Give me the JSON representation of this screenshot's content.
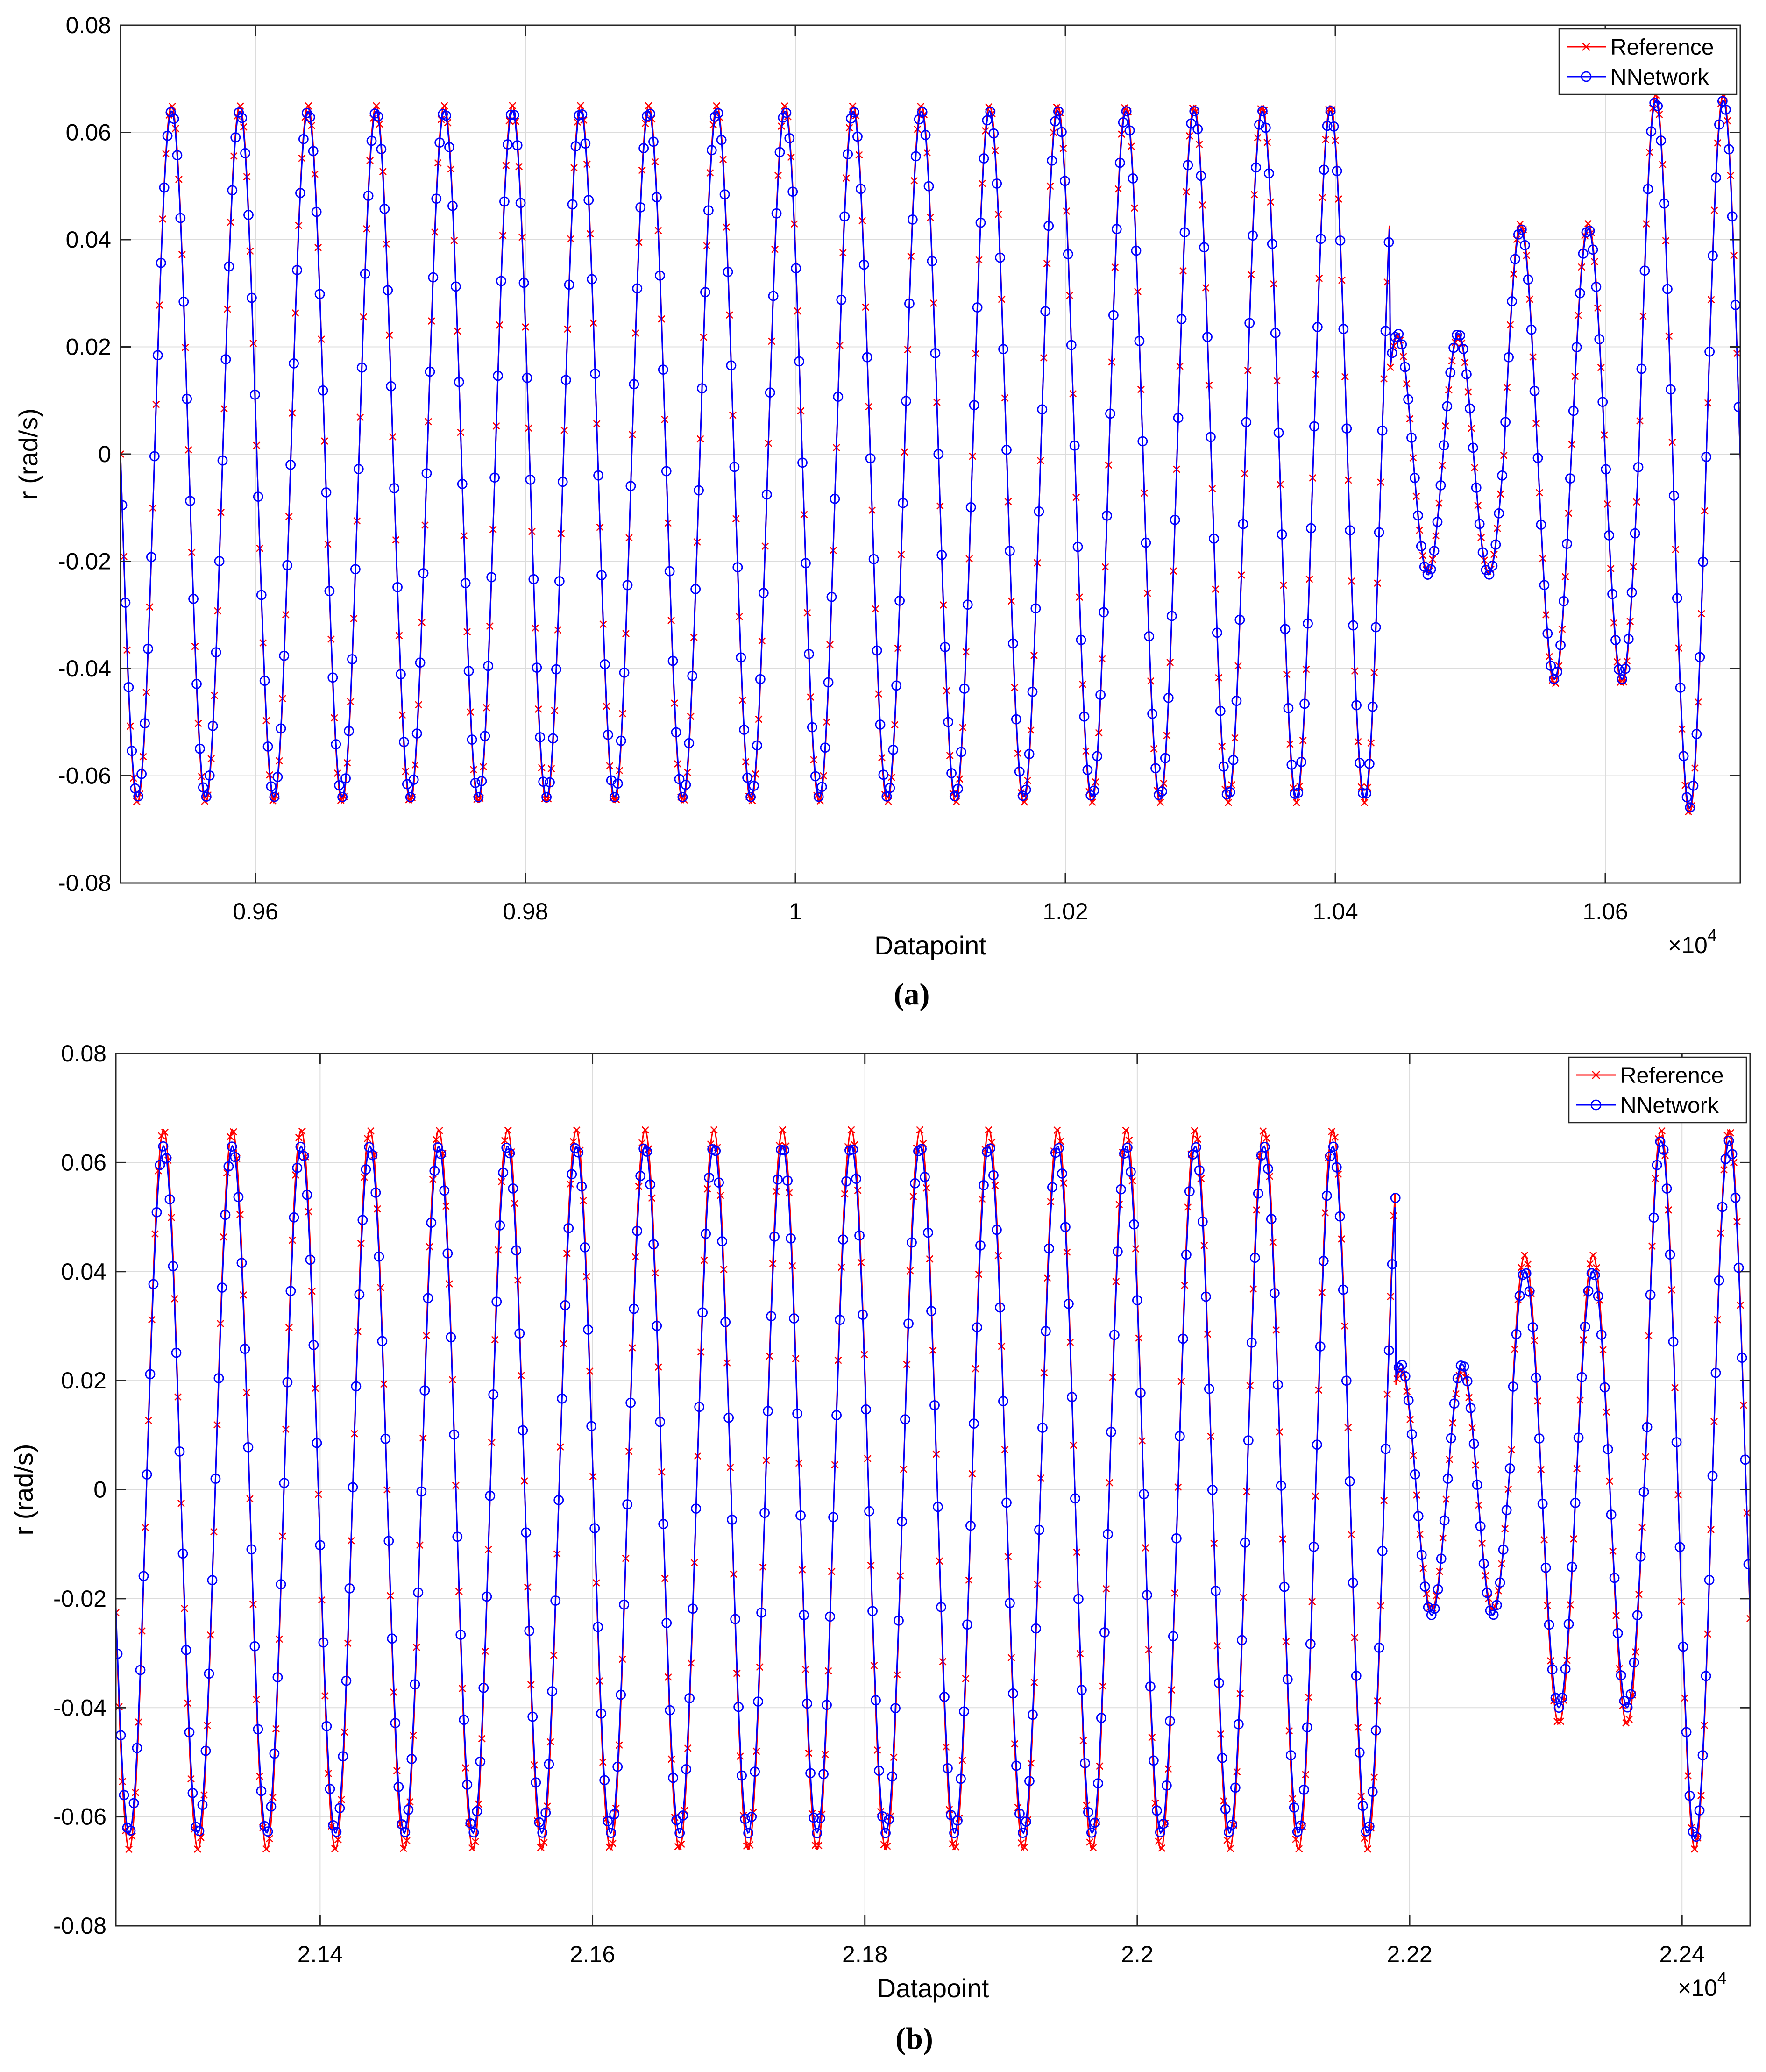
{
  "colors": {
    "reference": "#ff0000",
    "nnetwork": "#0000ff",
    "grid": "#dcdcdc",
    "axis": "#262626"
  },
  "chart_data": [
    {
      "type": "line",
      "panel": "a",
      "caption": "(a)",
      "xlabel": "Datapoint",
      "ylabel": "r (rad/s)",
      "x_exponent_label": "×10",
      "x_exponent": "4",
      "xlim": [
        0.95,
        1.07
      ],
      "ylim": [
        -0.08,
        0.08
      ],
      "xticks": [
        0.96,
        0.98,
        1.0,
        1.02,
        1.04,
        1.06
      ],
      "xtick_labels": [
        "0.96",
        "0.98",
        "1",
        "1.02",
        "1.04",
        "1.06"
      ],
      "yticks": [
        -0.08,
        -0.06,
        -0.04,
        -0.02,
        0,
        0.02,
        0.04,
        0.06,
        0.08
      ],
      "ytick_labels": [
        "-0.08",
        "-0.06",
        "-0.04",
        "-0.02",
        "0",
        "0.02",
        "0.04",
        "0.06",
        "0.08"
      ],
      "grid": true,
      "legend": {
        "position": "top-right",
        "entries": [
          "Reference",
          "NNetwork"
        ]
      },
      "series": [
        {
          "name": "Reference",
          "marker": "x",
          "x_start": 0.95,
          "start_phase_deg": 180,
          "segments": [
            {
              "until": 1.044,
              "period": 0.00505,
              "amplitude": 0.065
            },
            {
              "until": 1.0525,
              "period": 0.0045,
              "amplitude": 0.022
            },
            {
              "until": 1.0625,
              "period": 0.005,
              "amplitude": 0.043
            },
            {
              "until": 1.07,
              "period": 0.005,
              "amplitude": 0.067
            }
          ]
        },
        {
          "name": "NNetwork",
          "marker": "o",
          "x_start": 0.95,
          "start_phase_deg": 180,
          "segments": [
            {
              "until": 1.044,
              "period": 0.00505,
              "amplitude": 0.064
            },
            {
              "until": 1.0525,
              "period": 0.0045,
              "amplitude": 0.0225
            },
            {
              "until": 1.0625,
              "period": 0.005,
              "amplitude": 0.042
            },
            {
              "until": 1.07,
              "period": 0.005,
              "amplitude": 0.066
            }
          ]
        }
      ]
    },
    {
      "type": "line",
      "panel": "b",
      "caption": "(b)",
      "xlabel": "Datapoint",
      "ylabel": "r (rad/s)",
      "x_exponent_label": "×10",
      "x_exponent": "4",
      "xlim": [
        2.125,
        2.245
      ],
      "ylim": [
        -0.08,
        0.08
      ],
      "xticks": [
        2.14,
        2.16,
        2.18,
        2.2,
        2.22,
        2.24
      ],
      "xtick_labels": [
        "2.14",
        "2.16",
        "2.18",
        "2.2",
        "2.22",
        "2.24"
      ],
      "yticks": [
        -0.08,
        -0.06,
        -0.04,
        -0.02,
        0,
        0.02,
        0.04,
        0.06,
        0.08
      ],
      "ytick_labels": [
        "-0.08",
        "-0.06",
        "-0.04",
        "-0.02",
        "0",
        "0.02",
        "0.04",
        "0.06",
        "0.08"
      ],
      "grid": true,
      "legend": {
        "position": "top-right",
        "entries": [
          "Reference",
          "NNetwork"
        ]
      },
      "series": [
        {
          "name": "Reference",
          "marker": "x",
          "x_start": 2.125,
          "start_phase_deg": 200,
          "segments": [
            {
              "until": 2.219,
              "period": 0.00505,
              "amplitude": 0.066
            },
            {
              "until": 2.2275,
              "period": 0.0045,
              "amplitude": 0.022
            },
            {
              "until": 2.2375,
              "period": 0.005,
              "amplitude": 0.043
            },
            {
              "until": 2.245,
              "period": 0.005,
              "amplitude": 0.066
            }
          ]
        },
        {
          "name": "NNetwork",
          "marker": "o",
          "x_start": 2.125,
          "start_phase_deg": 200,
          "segments": [
            {
              "until": 2.219,
              "period": 0.00505,
              "amplitude": 0.063
            },
            {
              "until": 2.2275,
              "period": 0.0045,
              "amplitude": 0.023
            },
            {
              "until": 2.2375,
              "period": 0.005,
              "amplitude": 0.04
            },
            {
              "until": 2.245,
              "period": 0.005,
              "amplitude": 0.064
            }
          ]
        }
      ]
    }
  ]
}
